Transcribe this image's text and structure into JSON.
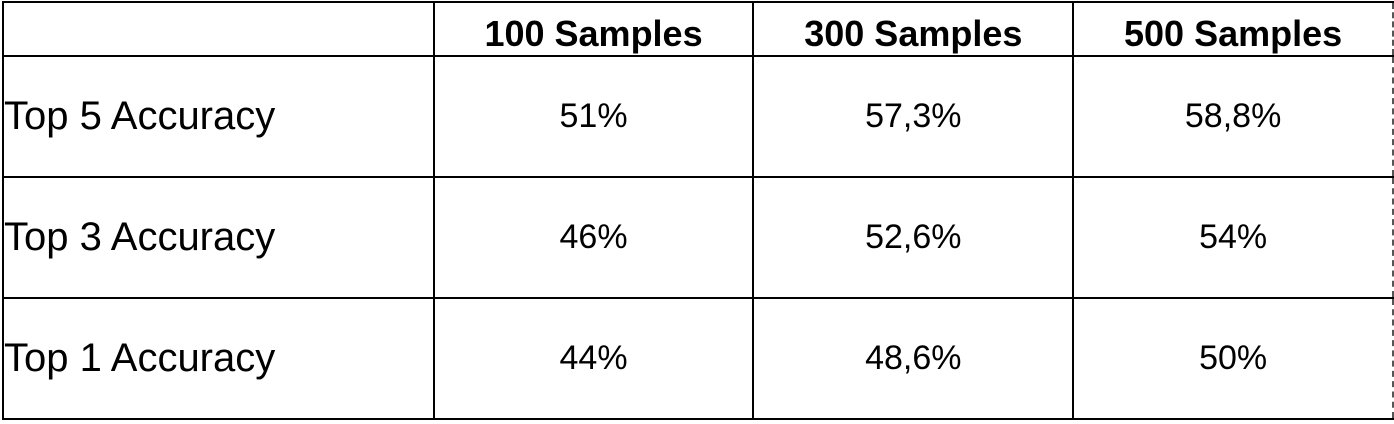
{
  "chart_data": {
    "type": "table",
    "columns": [
      "100 Samples",
      "300 Samples",
      "500 Samples"
    ],
    "rows": [
      {
        "label": "Top 5 Accuracy",
        "values": [
          "51%",
          "57,3%",
          "58,8%"
        ]
      },
      {
        "label": "Top 3 Accuracy",
        "values": [
          "46%",
          "52,6%",
          "54%"
        ]
      },
      {
        "label": "Top 1 Accuracy",
        "values": [
          "44%",
          "48,6%",
          "50%"
        ]
      }
    ]
  }
}
